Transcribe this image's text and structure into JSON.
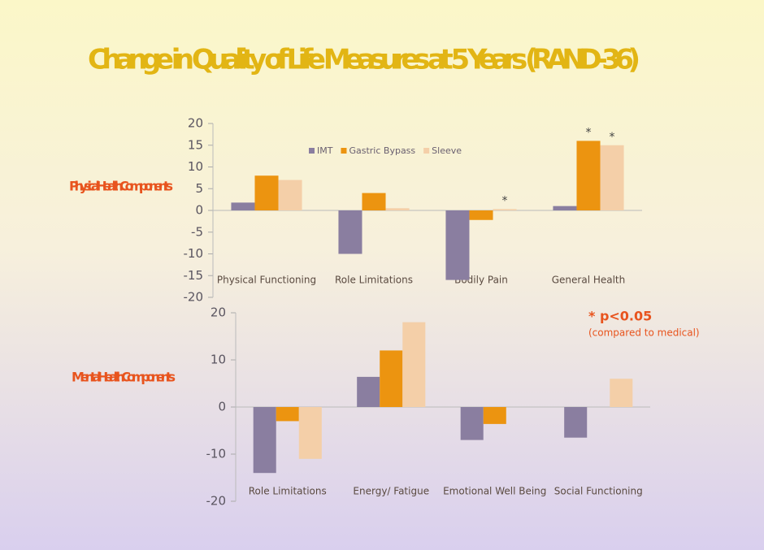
{
  "title": "Change in Quality of Life Measures at 5 Years  (RAND-36)",
  "note": {
    "marker": "* p<0.05",
    "text": "(compared to medical)"
  },
  "chart_data": [
    {
      "type": "bar",
      "label": "Physical Health Components",
      "categories": [
        "Physical Functioning",
        "Role Limitations",
        "Bodily Pain",
        "General Health"
      ],
      "series": [
        {
          "name": "IMT",
          "color": "#8a7ea0",
          "values": [
            1.8,
            -10,
            -16,
            1
          ]
        },
        {
          "name": "Gastric Bypass",
          "color": "#ec9410",
          "values": [
            8,
            4,
            -2.2,
            16
          ],
          "marker": "*",
          "marked": [
            false,
            false,
            false,
            true
          ]
        },
        {
          "name": "Sleeve",
          "color": "#f4cfa8",
          "values": [
            7,
            0.5,
            0.3,
            15
          ],
          "marker": "*",
          "marked": [
            false,
            false,
            true,
            true
          ]
        }
      ],
      "ylim": [
        -20,
        20
      ],
      "yticks": [
        -20,
        -15,
        -10,
        -5,
        0,
        5,
        10,
        15,
        20
      ],
      "legend": "top"
    },
    {
      "type": "bar",
      "label": "Mental Health Components",
      "categories": [
        "Role Limitations",
        "Energy/ Fatigue",
        "Emotional Well Being",
        "Social Functioning"
      ],
      "series": [
        {
          "name": "IMT",
          "color": "#8a7ea0",
          "values": [
            -14,
            6.4,
            -7,
            -6.5
          ]
        },
        {
          "name": "Gastric Bypass",
          "color": "#ec9410",
          "values": [
            -3,
            12,
            -3.6,
            0
          ]
        },
        {
          "name": "Sleeve",
          "color": "#f4cfa8",
          "values": [
            -11,
            18,
            0,
            6
          ]
        }
      ],
      "ylim": [
        -20,
        20
      ],
      "yticks": [
        -20,
        -10,
        0,
        10,
        20
      ]
    }
  ]
}
